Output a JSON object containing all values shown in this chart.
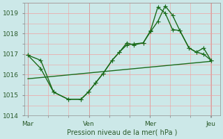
{
  "background_color": "#cce8e8",
  "grid_color": "#f0a0a0",
  "line_color": "#1a6b1a",
  "xlabel": "Pression niveau de la mer( hPa )",
  "ylim": [
    1014.0,
    1019.5
  ],
  "yticks": [
    1014,
    1015,
    1016,
    1017,
    1018,
    1019
  ],
  "xtick_labels": [
    "Mar",
    "Ven",
    "Mer",
    "Jeu"
  ],
  "xtick_positions": [
    0.0,
    0.333,
    0.667,
    1.0
  ],
  "line1_x": [
    0.0,
    0.07,
    0.14,
    0.22,
    0.29,
    0.33,
    0.37,
    0.41,
    0.46,
    0.5,
    0.54,
    0.58,
    0.63,
    0.67,
    0.71,
    0.75,
    0.79,
    0.83,
    0.88,
    0.92,
    0.96,
    1.0
  ],
  "line1_y": [
    1016.95,
    1016.7,
    1015.15,
    1014.8,
    1014.8,
    1015.15,
    1015.6,
    1016.05,
    1016.7,
    1017.1,
    1017.55,
    1017.45,
    1017.55,
    1018.15,
    1019.3,
    1019.0,
    1018.2,
    1018.15,
    1017.3,
    1017.1,
    1017.3,
    1016.7
  ],
  "line2_x": [
    0.0,
    0.07,
    0.14,
    0.22,
    0.29,
    0.33,
    0.37,
    0.41,
    0.46,
    0.5,
    0.54,
    0.58,
    0.63,
    0.67,
    0.71,
    0.75,
    0.79,
    0.83,
    0.88,
    0.92,
    0.96,
    1.0
  ],
  "line2_y": [
    1016.95,
    1016.3,
    1015.15,
    1014.8,
    1014.8,
    1015.15,
    1015.6,
    1016.05,
    1016.7,
    1017.1,
    1017.45,
    1017.5,
    1017.55,
    1018.1,
    1018.6,
    1019.35,
    1018.9,
    1018.15,
    1017.3,
    1017.1,
    1017.0,
    1016.7
  ],
  "trend_x": [
    0.0,
    1.0
  ],
  "trend_y": [
    1015.8,
    1016.65
  ],
  "marker_size": 2.5,
  "linewidth": 1.0
}
